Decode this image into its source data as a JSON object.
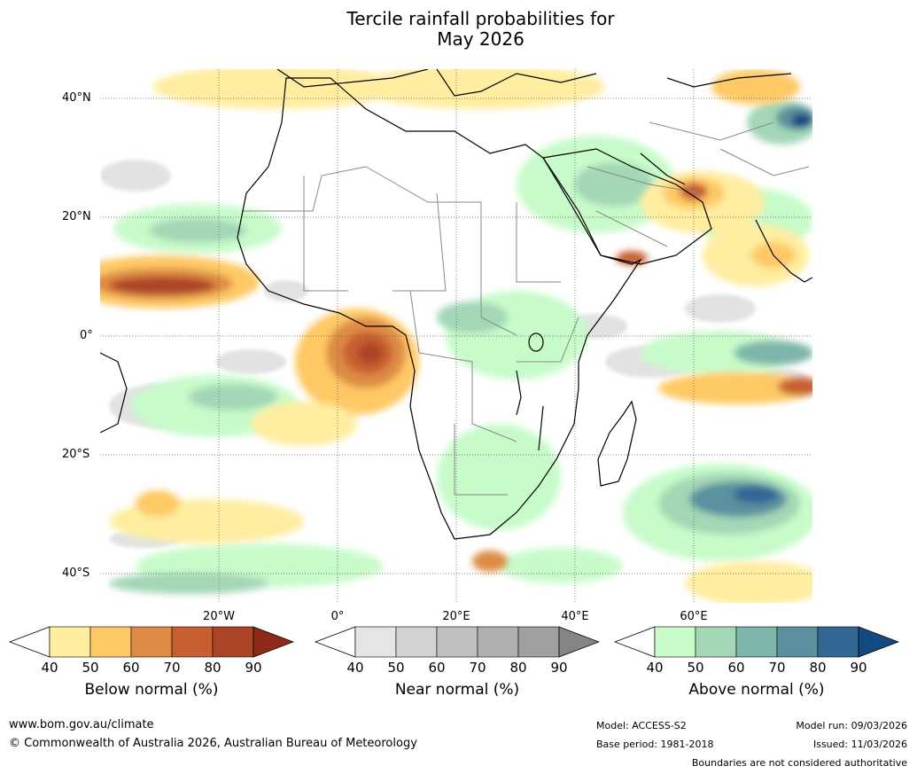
{
  "title_line1": "Tercile rainfall probabilities for",
  "title_line2": "May 2026",
  "lat_labels": [
    "40°N",
    "20°N",
    "0°",
    "20°S",
    "40°S"
  ],
  "lon_labels": [
    "20°W",
    "0°",
    "20°E",
    "40°E",
    "60°E"
  ],
  "colorbars": [
    {
      "label": "Below normal (%)",
      "ticks": [
        "40",
        "50",
        "60",
        "70",
        "80",
        "90"
      ],
      "colors": [
        "#ffeda0",
        "#fec965",
        "#de8c45",
        "#c85f30",
        "#ac4526",
        "#8e2a17"
      ]
    },
    {
      "label": "Near normal (%)",
      "ticks": [
        "40",
        "50",
        "60",
        "70",
        "80",
        "90"
      ],
      "colors": [
        "#e5e5e5",
        "#d2d2d2",
        "#c0c0c0",
        "#b0b1af",
        "#a0a0a0",
        "#858585"
      ]
    },
    {
      "label": "Above normal (%)",
      "ticks": [
        "40",
        "50",
        "60",
        "70",
        "80",
        "90"
      ],
      "colors": [
        "#c7fbc9",
        "#a3d7b6",
        "#7eb6ab",
        "#5b919f",
        "#336796",
        "#134a82"
      ]
    }
  ],
  "footer": {
    "website": "www.bom.gov.au/climate",
    "copyright": "© Commonwealth of Australia 2026, Australian Bureau of Meteorology",
    "model": "Model: ACCESS-S2",
    "base_period": "Base period: 1981-2018",
    "model_run": "Model run: 09/03/2026",
    "issued": "Issued: 11/03/2026",
    "disclaimer": "Boundaries are not considered authoritative"
  },
  "colors": {
    "coast": "#000000",
    "borders": "#888888",
    "grid": "#555555"
  }
}
